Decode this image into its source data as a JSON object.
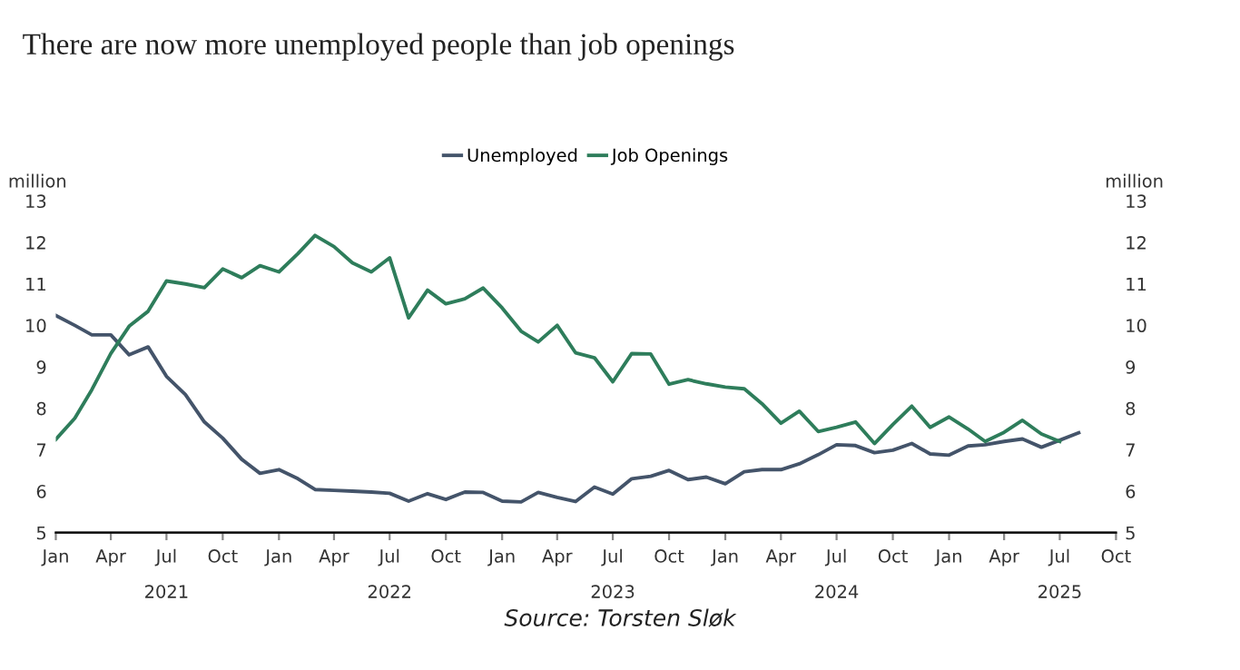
{
  "chart_data": {
    "type": "line",
    "title": "There are now more unemployed people than job openings",
    "ylabel": "million",
    "y2label": "million",
    "annotations": [
      "Source: Torsten Sløk"
    ],
    "series": [
      {
        "name": "Unemployed",
        "color": "#44546a",
        "x": [
          "2021-01",
          "2021-02",
          "2021-03",
          "2021-04",
          "2021-05",
          "2021-06",
          "2021-07",
          "2021-08",
          "2021-09",
          "2021-10",
          "2021-11",
          "2021-12",
          "2022-01",
          "2022-02",
          "2022-03",
          "2022-04",
          "2022-05",
          "2022-06",
          "2022-07",
          "2022-08",
          "2022-09",
          "2022-10",
          "2022-11",
          "2022-12",
          "2023-01",
          "2023-02",
          "2023-03",
          "2023-04",
          "2023-05",
          "2023-06",
          "2023-07",
          "2023-08",
          "2023-09",
          "2023-10",
          "2023-11",
          "2023-12",
          "2024-01",
          "2024-02",
          "2024-03",
          "2024-04",
          "2024-05",
          "2024-06",
          "2024-07",
          "2024-08",
          "2024-09",
          "2024-10",
          "2024-11",
          "2024-12",
          "2025-01",
          "2025-02",
          "2025-03",
          "2025-04",
          "2025-05",
          "2025-06",
          "2025-07",
          "2025-08"
        ],
        "values": [
          10.24,
          10.0,
          9.77,
          9.77,
          9.29,
          9.48,
          8.77,
          8.33,
          7.67,
          7.28,
          6.77,
          6.43,
          6.52,
          6.3,
          6.04,
          6.02,
          6.0,
          5.98,
          5.95,
          5.76,
          5.94,
          5.8,
          5.98,
          5.97,
          5.76,
          5.74,
          5.97,
          5.85,
          5.75,
          6.1,
          5.93,
          6.3,
          6.36,
          6.5,
          6.28,
          6.34,
          6.18,
          6.47,
          6.52,
          6.52,
          6.66,
          6.88,
          7.12,
          7.1,
          6.93,
          6.99,
          7.15,
          6.9,
          6.87,
          7.09,
          7.12,
          7.2,
          7.26,
          7.06,
          7.23,
          7.41
        ]
      },
      {
        "name": "Job Openings",
        "color": "#2e7d5b",
        "x": [
          "2021-01",
          "2021-02",
          "2021-03",
          "2021-04",
          "2021-05",
          "2021-06",
          "2021-07",
          "2021-08",
          "2021-09",
          "2021-10",
          "2021-11",
          "2021-12",
          "2022-01",
          "2022-02",
          "2022-03",
          "2022-04",
          "2022-05",
          "2022-06",
          "2022-07",
          "2022-08",
          "2022-09",
          "2022-10",
          "2022-11",
          "2022-12",
          "2023-01",
          "2023-02",
          "2023-03",
          "2023-04",
          "2023-05",
          "2023-06",
          "2023-07",
          "2023-08",
          "2023-09",
          "2023-10",
          "2023-11",
          "2023-12",
          "2024-01",
          "2024-02",
          "2024-03",
          "2024-04",
          "2024-05",
          "2024-06",
          "2024-07",
          "2024-08",
          "2024-09",
          "2024-10",
          "2024-11",
          "2024-12",
          "2025-01",
          "2025-02",
          "2025-03",
          "2025-04",
          "2025-05",
          "2025-06",
          "2025-07"
        ],
        "values": [
          7.25,
          7.76,
          8.45,
          9.32,
          9.98,
          10.34,
          11.07,
          11.0,
          10.91,
          11.36,
          11.15,
          11.44,
          11.29,
          11.73,
          12.17,
          11.9,
          11.51,
          11.29,
          11.63,
          10.18,
          10.85,
          10.52,
          10.64,
          10.9,
          10.42,
          9.86,
          9.6,
          10.0,
          9.34,
          9.22,
          8.64,
          9.32,
          9.31,
          8.58,
          8.69,
          8.59,
          8.51,
          8.47,
          8.11,
          7.64,
          7.93,
          7.44,
          7.54,
          7.67,
          7.15,
          7.61,
          8.05,
          7.54,
          7.79,
          7.5,
          7.2,
          7.42,
          7.71,
          7.38,
          7.2
        ]
      }
    ],
    "xlim": [
      "2021-01",
      "2025-10"
    ],
    "xticks": [
      {
        "value": "2021-01",
        "label": "Jan"
      },
      {
        "value": "2021-04",
        "label": "Apr"
      },
      {
        "value": "2021-07",
        "label": "Jul"
      },
      {
        "value": "2021-10",
        "label": "Oct"
      },
      {
        "value": "2022-01",
        "label": "Jan"
      },
      {
        "value": "2022-04",
        "label": "Apr"
      },
      {
        "value": "2022-07",
        "label": "Jul"
      },
      {
        "value": "2022-10",
        "label": "Oct"
      },
      {
        "value": "2023-01",
        "label": "Jan"
      },
      {
        "value": "2023-04",
        "label": "Apr"
      },
      {
        "value": "2023-07",
        "label": "Jul"
      },
      {
        "value": "2023-10",
        "label": "Oct"
      },
      {
        "value": "2024-01",
        "label": "Jan"
      },
      {
        "value": "2024-04",
        "label": "Apr"
      },
      {
        "value": "2024-07",
        "label": "Jul"
      },
      {
        "value": "2024-10",
        "label": "Oct"
      },
      {
        "value": "2025-01",
        "label": "Jan"
      },
      {
        "value": "2025-04",
        "label": "Apr"
      },
      {
        "value": "2025-07",
        "label": "Jul"
      },
      {
        "value": "2025-10",
        "label": "Oct"
      }
    ],
    "x2lim": [
      "2021-01",
      "2025-10"
    ],
    "x2ticks": [
      {
        "value": "2021-07",
        "label": "2021"
      },
      {
        "value": "2022-07",
        "label": "2022"
      },
      {
        "value": "2023-07",
        "label": "2023"
      },
      {
        "value": "2024-07",
        "label": "2024"
      },
      {
        "value": "2025-07",
        "label": "2025"
      }
    ],
    "ylim": [
      5,
      13
    ],
    "yticks": [
      5,
      6,
      7,
      8,
      9,
      10,
      11,
      12,
      13
    ],
    "y2lim": [
      5,
      13
    ],
    "y2ticks": [
      5,
      6,
      7,
      8,
      9,
      10,
      11,
      12,
      13
    ],
    "grid": false,
    "legend": "top",
    "marker": "none",
    "line_style": "solid"
  }
}
